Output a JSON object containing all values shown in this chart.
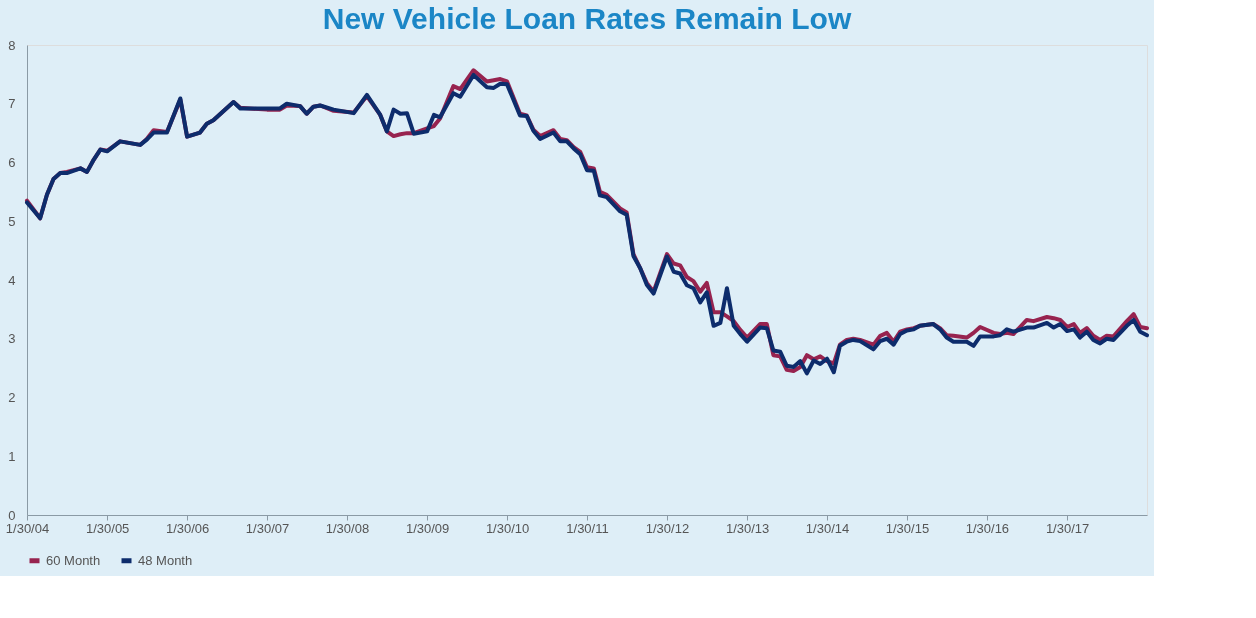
{
  "chart_data": {
    "type": "line",
    "title": "New Vehicle Loan Rates Remain Low",
    "x": [
      "2004-01",
      "2004-03",
      "2004-04",
      "2004-05",
      "2004-06",
      "2004-07",
      "2004-09",
      "2004-10",
      "2004-11",
      "2004-12",
      "2005-01",
      "2005-03",
      "2005-06",
      "2005-07",
      "2005-08",
      "2005-10",
      "2005-12",
      "2006-01",
      "2006-03",
      "2006-04",
      "2006-05",
      "2006-08",
      "2006-09",
      "2007-01",
      "2007-03",
      "2007-04",
      "2007-06",
      "2007-07",
      "2007-08",
      "2007-09",
      "2007-11",
      "2008-02",
      "2008-04",
      "2008-06",
      "2008-07",
      "2008-08",
      "2008-09",
      "2008-10",
      "2008-11",
      "2009-01",
      "2009-02",
      "2009-03",
      "2009-05",
      "2009-06",
      "2009-08",
      "2009-10",
      "2009-11",
      "2009-12",
      "2010-01",
      "2010-03",
      "2010-04",
      "2010-05",
      "2010-06",
      "2010-08",
      "2010-09",
      "2010-10",
      "2010-11",
      "2010-12",
      "2011-01",
      "2011-02",
      "2011-03",
      "2011-04",
      "2011-06",
      "2011-07",
      "2011-08",
      "2011-09",
      "2011-10",
      "2011-11",
      "2012-01",
      "2012-02",
      "2012-03",
      "2012-04",
      "2012-05",
      "2012-06",
      "2012-07",
      "2012-08",
      "2012-09",
      "2012-10",
      "2012-11",
      "2012-12",
      "2013-01",
      "2013-03",
      "2013-04",
      "2013-05",
      "2013-06",
      "2013-07",
      "2013-08",
      "2013-09",
      "2013-10",
      "2013-11",
      "2013-12",
      "2014-01",
      "2014-02",
      "2014-03",
      "2014-04",
      "2014-05",
      "2014-06",
      "2014-08",
      "2014-09",
      "2014-10",
      "2014-11",
      "2014-12",
      "2015-01",
      "2015-02",
      "2015-03",
      "2015-05",
      "2015-06",
      "2015-07",
      "2015-08",
      "2015-10",
      "2015-11",
      "2015-12",
      "2016-02",
      "2016-03",
      "2016-04",
      "2016-05",
      "2016-07",
      "2016-08",
      "2016-10",
      "2016-11",
      "2016-12",
      "2017-01",
      "2017-02",
      "2017-03",
      "2017-04",
      "2017-05",
      "2017-06",
      "2017-07",
      "2017-08",
      "2017-10",
      "2017-11",
      "2017-12",
      "2018-01"
    ],
    "series": [
      {
        "name": "60 Month",
        "color": "#97234f",
        "values": [
          5.35,
          5.05,
          5.45,
          5.72,
          5.82,
          5.84,
          5.9,
          5.84,
          6.05,
          6.22,
          6.2,
          6.36,
          6.3,
          6.4,
          6.55,
          6.52,
          7.07,
          6.44,
          6.51,
          6.66,
          6.72,
          7.03,
          6.93,
          6.9,
          6.9,
          6.97,
          6.96,
          6.83,
          6.95,
          6.97,
          6.88,
          6.85,
          7.13,
          6.81,
          6.53,
          6.45,
          6.48,
          6.5,
          6.5,
          6.58,
          6.62,
          6.75,
          7.3,
          7.25,
          7.57,
          7.38,
          7.4,
          7.42,
          7.38,
          6.83,
          6.8,
          6.56,
          6.45,
          6.55,
          6.4,
          6.38,
          6.26,
          6.18,
          5.92,
          5.9,
          5.5,
          5.45,
          5.22,
          5.15,
          4.44,
          4.2,
          3.95,
          3.8,
          4.44,
          4.28,
          4.25,
          4.05,
          3.98,
          3.8,
          3.95,
          3.45,
          3.45,
          3.38,
          3.3,
          3.15,
          3.02,
          3.25,
          3.25,
          2.72,
          2.7,
          2.47,
          2.45,
          2.52,
          2.72,
          2.65,
          2.7,
          2.62,
          2.58,
          2.9,
          2.98,
          3.0,
          2.98,
          2.9,
          3.05,
          3.1,
          2.95,
          3.12,
          3.16,
          3.18,
          3.22,
          3.25,
          3.18,
          3.06,
          3.05,
          3.02,
          3.1,
          3.2,
          3.1,
          3.08,
          3.1,
          3.08,
          3.32,
          3.3,
          3.37,
          3.35,
          3.32,
          3.2,
          3.25,
          3.1,
          3.18,
          3.05,
          2.98,
          3.05,
          3.04,
          3.3,
          3.42,
          3.2,
          3.18
        ]
      },
      {
        "name": "48 Month",
        "color": "#0d2c6c",
        "values": [
          5.32,
          5.05,
          5.45,
          5.72,
          5.82,
          5.82,
          5.9,
          5.84,
          6.05,
          6.22,
          6.19,
          6.36,
          6.3,
          6.39,
          6.51,
          6.51,
          7.09,
          6.44,
          6.51,
          6.66,
          6.72,
          7.03,
          6.92,
          6.92,
          6.92,
          7.0,
          6.96,
          6.83,
          6.95,
          6.97,
          6.9,
          6.84,
          7.15,
          6.81,
          6.53,
          6.9,
          6.83,
          6.84,
          6.49,
          6.53,
          6.81,
          6.77,
          7.18,
          7.12,
          7.49,
          7.28,
          7.27,
          7.34,
          7.33,
          6.8,
          6.79,
          6.54,
          6.4,
          6.51,
          6.36,
          6.36,
          6.24,
          6.14,
          5.87,
          5.86,
          5.44,
          5.41,
          5.17,
          5.11,
          4.41,
          4.2,
          3.92,
          3.77,
          4.4,
          4.14,
          4.11,
          3.91,
          3.86,
          3.62,
          3.79,
          3.22,
          3.27,
          3.86,
          3.22,
          3.08,
          2.95,
          3.19,
          3.18,
          2.8,
          2.78,
          2.54,
          2.52,
          2.62,
          2.41,
          2.63,
          2.57,
          2.66,
          2.43,
          2.88,
          2.95,
          2.98,
          2.96,
          2.82,
          2.96,
          3.0,
          2.9,
          3.08,
          3.14,
          3.16,
          3.22,
          3.25,
          3.16,
          3.02,
          2.95,
          2.95,
          2.88,
          3.04,
          3.04,
          3.06,
          3.16,
          3.12,
          3.19,
          3.19,
          3.27,
          3.19,
          3.25,
          3.13,
          3.16,
          3.02,
          3.12,
          2.98,
          2.92,
          3.0,
          2.98,
          3.22,
          3.32,
          3.12,
          3.06
        ]
      }
    ],
    "xlim": [
      "2004-01",
      "2018-01"
    ],
    "xticks": [
      {
        "value": "2004-01",
        "label": "1/30/04"
      },
      {
        "value": "2005-01",
        "label": "1/30/05"
      },
      {
        "value": "2006-01",
        "label": "1/30/06"
      },
      {
        "value": "2007-01",
        "label": "1/30/07"
      },
      {
        "value": "2008-01",
        "label": "1/30/08"
      },
      {
        "value": "2009-01",
        "label": "1/30/09"
      },
      {
        "value": "2010-01",
        "label": "1/30/10"
      },
      {
        "value": "2011-01",
        "label": "1/30/11"
      },
      {
        "value": "2012-01",
        "label": "1/30/12"
      },
      {
        "value": "2013-01",
        "label": "1/30/13"
      },
      {
        "value": "2014-01",
        "label": "1/30/14"
      },
      {
        "value": "2015-01",
        "label": "1/30/15"
      },
      {
        "value": "2016-01",
        "label": "1/30/16"
      },
      {
        "value": "2017-01",
        "label": "1/30/17"
      }
    ],
    "ylim": [
      0,
      8
    ],
    "yticks": [
      0,
      1,
      2,
      3,
      4,
      5,
      6,
      7,
      8
    ],
    "grid": false,
    "legend": "bottom",
    "line_style": "solid",
    "marker": "none"
  }
}
